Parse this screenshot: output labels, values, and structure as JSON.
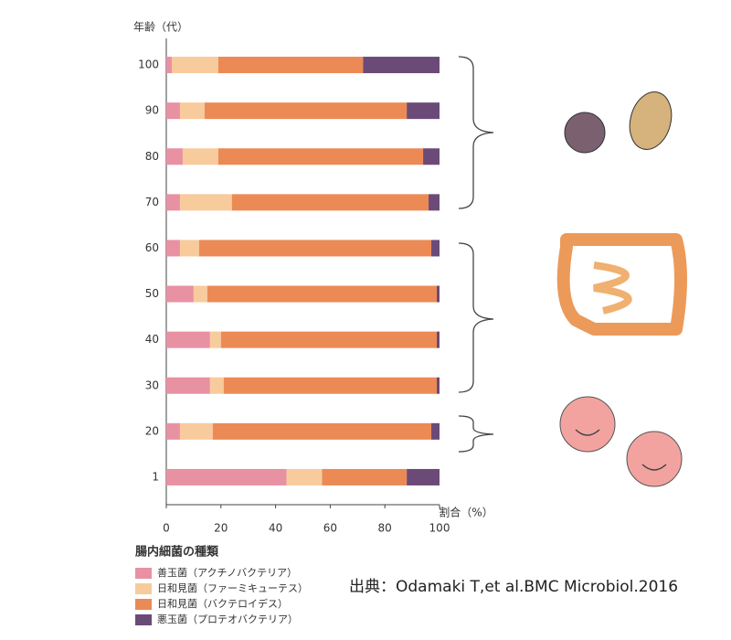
{
  "chart_data": {
    "type": "stacked_barh",
    "ylabel": "年齢（代）",
    "xlabel": "割合（%）",
    "categories": [
      "100",
      "90",
      "80",
      "70",
      "60",
      "50",
      "40",
      "30",
      "20",
      "1"
    ],
    "series": [
      {
        "name": "善玉菌（アクチノバクテリア）",
        "color": "#e891a2",
        "values": [
          2,
          5,
          6,
          5,
          5,
          10,
          16,
          16,
          5,
          44
        ]
      },
      {
        "name": "日和見菌（ファーミキューテス）",
        "color": "#f8cb9c",
        "values": [
          17,
          9,
          13,
          19,
          7,
          5,
          4,
          5,
          12,
          13
        ]
      },
      {
        "name": "日和見菌（バクテロイデス）",
        "color": "#ec8a56",
        "values": [
          53,
          74,
          75,
          72,
          85,
          84,
          79,
          78,
          80,
          31
        ]
      },
      {
        "name": "悪玉菌（プロテオバクテリア）",
        "color": "#6b4a78",
        "values": [
          28,
          12,
          6,
          4,
          3,
          1,
          1,
          1,
          3,
          12
        ]
      }
    ],
    "xlim": [
      0,
      100
    ],
    "xticks": [
      0,
      20,
      40,
      60,
      80,
      100
    ],
    "legend_title": "腸内細菌の種類",
    "source": "出典：Odamaki T,et al.BMC Microbiol.2016"
  }
}
